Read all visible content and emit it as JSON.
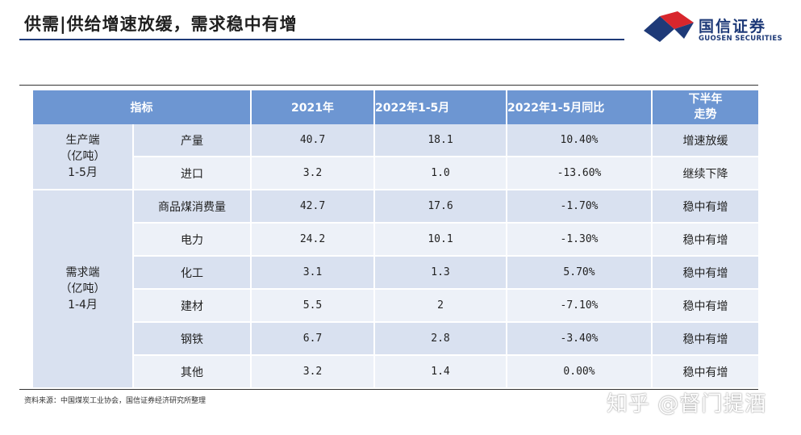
{
  "header": {
    "title": "供需|供给增速放缓，需求稳中有增",
    "logo_cn": "国信证券",
    "logo_en": "GUOSEN SECURITIES",
    "logo_colors": {
      "blue": "#1e3a78",
      "red": "#d8262d"
    }
  },
  "table": {
    "headers": [
      "指标",
      "2021年",
      "2022年1-5月",
      "2022年1-5月同比",
      "下半年\n走势"
    ],
    "groups": [
      {
        "label": "生产端\n（亿吨）\n1-5月",
        "rows": [
          {
            "item": "产量",
            "y2021": "40.7",
            "ytd": "18.1",
            "yoy": "10.40%",
            "trend": "增速放缓"
          },
          {
            "item": "进口",
            "y2021": "3.2",
            "ytd": "1.0",
            "yoy": "-13.60%",
            "trend": "继续下降"
          }
        ]
      },
      {
        "label": "需求端\n（亿吨）\n1-4月",
        "rows": [
          {
            "item": "商品煤消费量",
            "y2021": "42.7",
            "ytd": "17.6",
            "yoy": "-1.70%",
            "trend": "稳中有增"
          },
          {
            "item": "电力",
            "y2021": "24.2",
            "ytd": "10.1",
            "yoy": "-1.30%",
            "trend": "稳中有增"
          },
          {
            "item": "化工",
            "y2021": "3.1",
            "ytd": "1.3",
            "yoy": "5.70%",
            "trend": "稳中有增"
          },
          {
            "item": "建材",
            "y2021": "5.5",
            "ytd": "2",
            "yoy": "-7.10%",
            "trend": "稳中有增"
          },
          {
            "item": "钢铁",
            "y2021": "6.7",
            "ytd": "2.8",
            "yoy": "-3.40%",
            "trend": "稳中有增"
          },
          {
            "item": "其他",
            "y2021": "3.2",
            "ytd": "1.4",
            "yoy": "0.00%",
            "trend": "稳中有增"
          }
        ]
      }
    ]
  },
  "footer": {
    "source": "资料来源：中国煤炭工业协会，国信证券经济研究所整理",
    "watermark": "知乎 @督门提酒"
  }
}
